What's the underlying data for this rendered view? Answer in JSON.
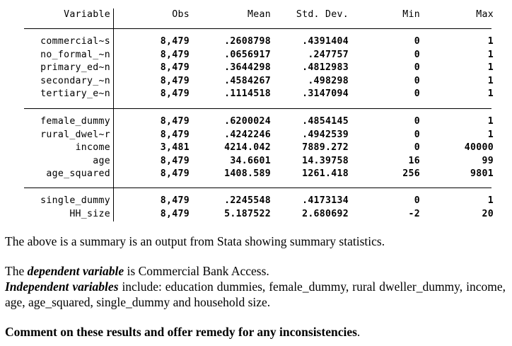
{
  "table": {
    "headers": {
      "variable": "Variable",
      "obs": "Obs",
      "mean": "Mean",
      "sd": "Std. Dev.",
      "min": "Min",
      "max": "Max"
    },
    "groups": [
      [
        {
          "name": "commercial~s",
          "obs": "8,479",
          "mean": ".2608798",
          "sd": ".4391404",
          "min": "0",
          "max": "1"
        },
        {
          "name": "no_formal_~n",
          "obs": "8,479",
          "mean": ".0656917",
          "sd": ".247757",
          "min": "0",
          "max": "1"
        },
        {
          "name": "primary_ed~n",
          "obs": "8,479",
          "mean": ".3644298",
          "sd": ".4812983",
          "min": "0",
          "max": "1"
        },
        {
          "name": "secondary_~n",
          "obs": "8,479",
          "mean": ".4584267",
          "sd": ".498298",
          "min": "0",
          "max": "1"
        },
        {
          "name": "tertiary_e~n",
          "obs": "8,479",
          "mean": ".1114518",
          "sd": ".3147094",
          "min": "0",
          "max": "1"
        }
      ],
      [
        {
          "name": "female_dummy",
          "obs": "8,479",
          "mean": ".6200024",
          "sd": ".4854145",
          "min": "0",
          "max": "1"
        },
        {
          "name": "rural_dwel~r",
          "obs": "8,479",
          "mean": ".4242246",
          "sd": ".4942539",
          "min": "0",
          "max": "1"
        },
        {
          "name": "income",
          "obs": "3,481",
          "mean": "4214.042",
          "sd": "7889.272",
          "min": "0",
          "max": "40000"
        },
        {
          "name": "age",
          "obs": "8,479",
          "mean": "34.6601",
          "sd": "14.39758",
          "min": "16",
          "max": "99"
        },
        {
          "name": "age_squared",
          "obs": "8,479",
          "mean": "1408.589",
          "sd": "1261.418",
          "min": "256",
          "max": "9801"
        }
      ],
      [
        {
          "name": "single_dummy",
          "obs": "8,479",
          "mean": ".2245548",
          "sd": ".4173134",
          "min": "0",
          "max": "1"
        },
        {
          "name": "HH_size",
          "obs": "8,479",
          "mean": "5.187522",
          "sd": "2.680692",
          "min": "-2",
          "max": "20"
        }
      ]
    ]
  },
  "text": {
    "intro": "The above is a summary is an output from Stata showing summary statistics.",
    "dep_pre": "The ",
    "dep_em": "dependent variable",
    "dep_post": " is Commercial Bank Access.",
    "indep_em": "Independent variables",
    "indep_post": " include: education dummies, female_dummy, rural dweller_dummy, income, age, age_squared, single_dummy and household size.",
    "task_bold": "Comment on these results and offer remedy for any inconsistencies",
    "task_end": "."
  }
}
